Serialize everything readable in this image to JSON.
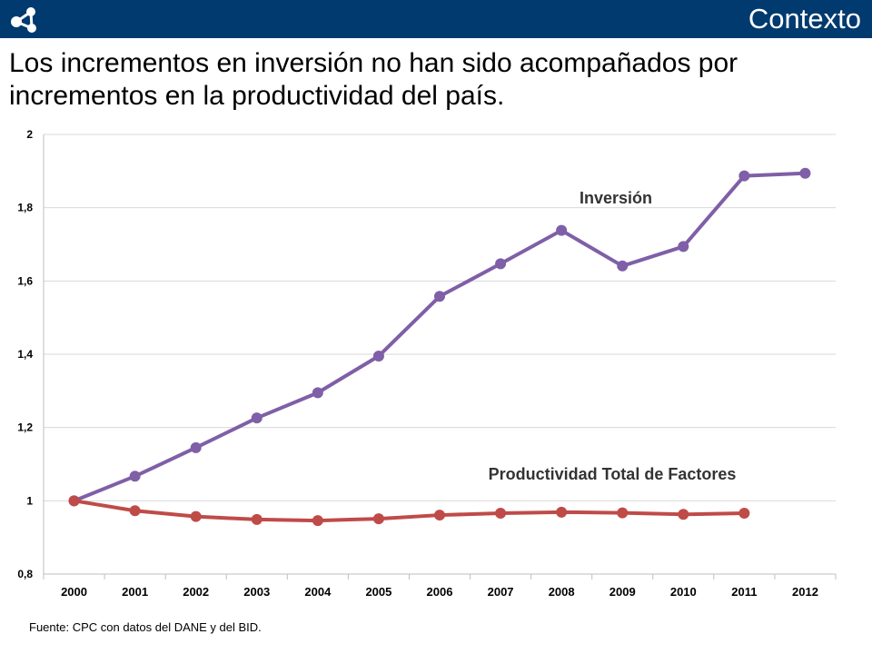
{
  "header": {
    "section_title": "Contexto",
    "logo_icon": "network-logo-icon",
    "bar_color": "#003a6e"
  },
  "slide": {
    "title": "Los incrementos en inversión no han sido acompañados por incrementos en la productividad del país.",
    "source": "Fuente: CPC con datos del DANE y del BID."
  },
  "chart_data": {
    "type": "line",
    "categories": [
      "2000",
      "2001",
      "2002",
      "2003",
      "2004",
      "2005",
      "2006",
      "2007",
      "2008",
      "2009",
      "2010",
      "2011",
      "2012"
    ],
    "ylim": [
      0.8,
      2
    ],
    "yticks": [
      0.8,
      1,
      1.2,
      1.4,
      1.6,
      1.8,
      2
    ],
    "ytick_labels": [
      "0,8",
      "1",
      "1,2",
      "1,4",
      "1,6",
      "1,8",
      "2"
    ],
    "grid": true,
    "legend": "none",
    "series": [
      {
        "name": "Inversión",
        "color": "#7f5fa7",
        "values": [
          1.0,
          1.067,
          1.145,
          1.226,
          1.295,
          1.395,
          1.558,
          1.647,
          1.738,
          1.641,
          1.694,
          1.887,
          1.894
        ]
      },
      {
        "name": "Productividad Total de Factores",
        "color": "#bf4b48",
        "values": [
          1.0,
          0.973,
          0.957,
          0.949,
          0.946,
          0.951,
          0.961,
          0.966,
          0.969,
          0.967,
          0.963,
          0.966,
          null
        ]
      }
    ]
  }
}
